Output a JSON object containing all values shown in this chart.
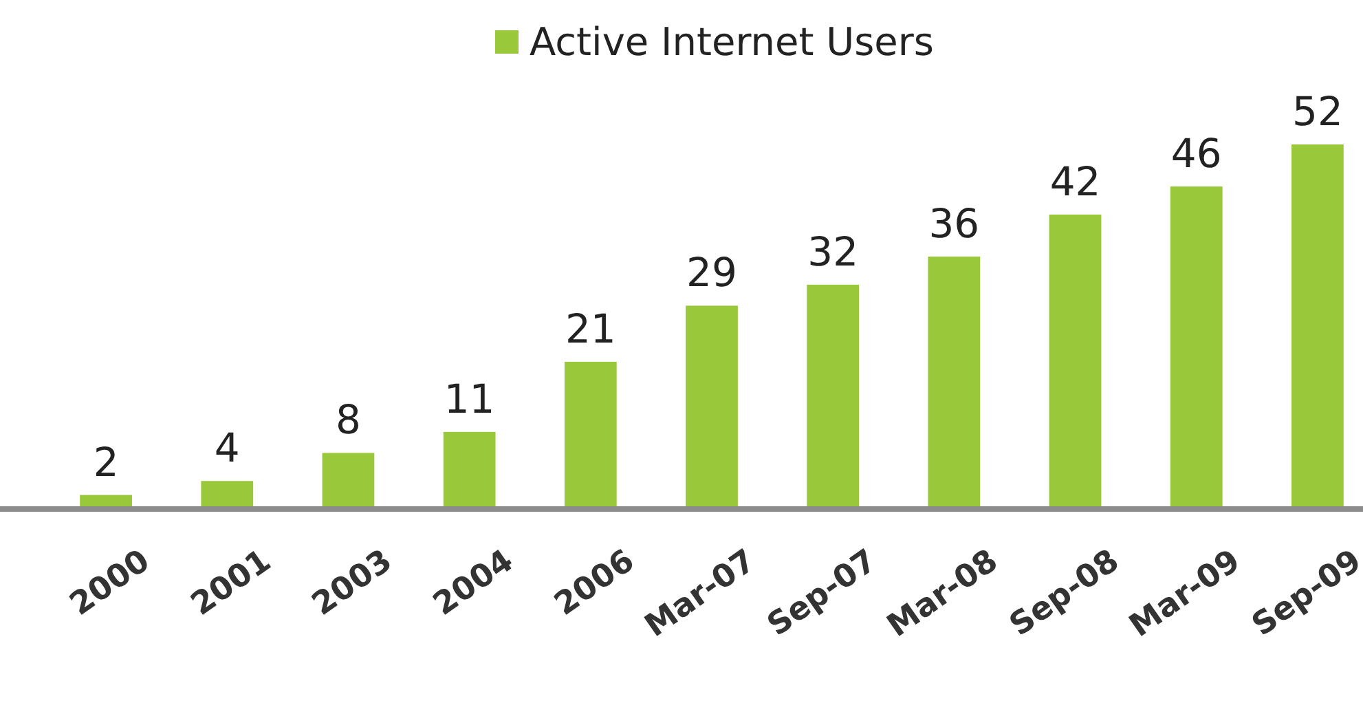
{
  "chart_data": {
    "type": "bar",
    "categories": [
      "2000",
      "2001",
      "2003",
      "2004",
      "2006",
      "Mar-07",
      "Sep-07",
      "Mar-08",
      "Sep-08",
      "Mar-09",
      "Sep-09"
    ],
    "series": [
      {
        "name": "Active Internet Users",
        "color": "#99c93a",
        "values": [
          2,
          4,
          8,
          11,
          21,
          29,
          32,
          36,
          42,
          46,
          52
        ]
      }
    ],
    "data_labels": true,
    "legend": "top"
  }
}
